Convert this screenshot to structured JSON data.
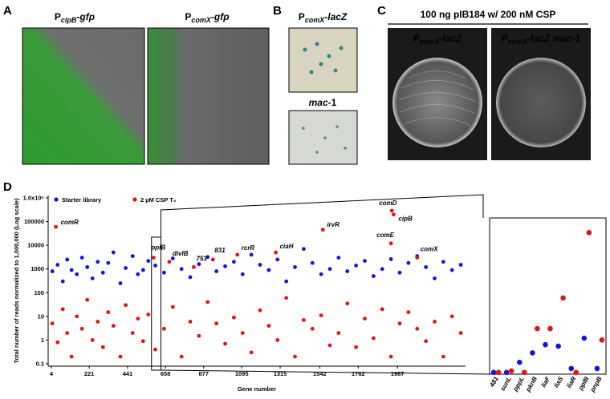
{
  "panels": {
    "A": {
      "label": "A",
      "images": [
        {
          "title": [
            "P",
            "cipB",
            "-gfp"
          ]
        },
        {
          "title": [
            "P",
            "comX",
            "-gfp"
          ]
        }
      ]
    },
    "B": {
      "label": "B",
      "images": [
        {
          "title": [
            "P",
            "comX",
            "-lacZ"
          ]
        },
        {
          "title": [
            "mac",
            "-1"
          ]
        }
      ]
    },
    "C": {
      "label": "C",
      "title": "100 ng pIB184 w/ 200 nM CSP",
      "images": [
        {
          "title": [
            "P",
            "comX",
            "-lacZ"
          ]
        },
        {
          "title": [
            "P",
            "comX",
            "-lacZ",
            " mac",
            "-1"
          ]
        }
      ]
    },
    "D": {
      "label": "D"
    }
  },
  "chart_data": [
    {
      "type": "scatter",
      "xlabel": "Gene number",
      "ylabel": "Total number of reads normalized to 1,000,000 (Log scale)",
      "log_y": true,
      "ylim": [
        0.1,
        1000000
      ],
      "yticks": [
        0.1,
        1,
        10,
        100,
        1000,
        10000,
        100000,
        {
          "value": 1000000,
          "label": "1.0x10⁶"
        }
      ],
      "xlim": [
        -14,
        2377
      ],
      "xticks": [
        4,
        221,
        441,
        658,
        877,
        1095,
        1315,
        1542,
        1762,
        1987
      ],
      "zoom_range": [
        578,
        632
      ],
      "series": [
        {
          "name": "Starter library",
          "color": "#1414e6",
          "x": [
            10,
            40,
            70,
            95,
            120,
            150,
            180,
            210,
            240,
            270,
            300,
            330,
            360,
            400,
            430,
            470,
            500,
            530,
            560,
            600,
            650,
            700,
            750,
            800,
            850,
            900,
            950,
            1000,
            1050,
            1100,
            1150,
            1200,
            1250,
            1300,
            1350,
            1400,
            1450,
            1500,
            1550,
            1600,
            1650,
            1700,
            1750,
            1800,
            1850,
            1900,
            1950,
            2000,
            2050,
            2100,
            2150,
            2200,
            2250,
            2300,
            2350
          ],
          "values": [
            800,
            1500,
            300,
            2500,
            900,
            600,
            3000,
            1200,
            400,
            2000,
            700,
            1800,
            5000,
            250,
            1100,
            3500,
            600,
            900,
            2200,
            1400,
            700,
            2800,
            1000,
            450,
            1600,
            3200,
            800,
            1300,
            2000,
            600,
            4000,
            1500,
            900,
            2500,
            300,
            1200,
            7000,
            1800,
            600,
            1000,
            3000,
            800,
            1400,
            2200,
            500,
            1000,
            2600,
            700,
            1800,
            3500,
            1200,
            400,
            2000,
            900,
            1500
          ]
        },
        {
          "name": "2 µM CSP T₅",
          "color": "#e61414",
          "x": [
            10,
            40,
            70,
            95,
            120,
            150,
            180,
            210,
            240,
            270,
            300,
            330,
            360,
            400,
            430,
            470,
            500,
            530,
            560,
            600,
            650,
            700,
            750,
            800,
            850,
            900,
            950,
            1000,
            1050,
            1100,
            1150,
            1200,
            1250,
            1300,
            1350,
            1400,
            1450,
            1500,
            1550,
            1600,
            1650,
            1700,
            1750,
            1800,
            1850,
            1900,
            1950,
            2000,
            2050,
            2100,
            2150,
            2200,
            2250,
            2300,
            2350
          ],
          "values": [
            5,
            0.8,
            20,
            2,
            0.2,
            10,
            3,
            50,
            1,
            6,
            0.5,
            15,
            4,
            0.2,
            30,
            2,
            8,
            0.9,
            12,
            0.4,
            3,
            25,
            0.2,
            6,
            1.5,
            40,
            5,
            0.7,
            9,
            2,
            0.3,
            18,
            4,
            1,
            60,
            0.2,
            7,
            3,
            11,
            0.6,
            2,
            35,
            0.5,
            8,
            1.2,
            20,
            0.2,
            5,
            15,
            3,
            0.9,
            6,
            0.2,
            10,
            2
          ]
        }
      ],
      "annotations": [
        {
          "text": "comR",
          "x": 30,
          "y": 60000
        },
        {
          "text": "pplB",
          "x": 590,
          "y": 3000
        },
        {
          "text": "divIB",
          "x": 680,
          "y": 2000
        },
        {
          "text": "753",
          "x": 820,
          "y": 1200
        },
        {
          "text": "831",
          "x": 930,
          "y": 2500
        },
        {
          "text": "rcrR",
          "x": 1070,
          "y": 4000
        },
        {
          "text": "ciaH",
          "x": 1290,
          "y": 5000
        },
        {
          "text": "irvR",
          "x": 1560,
          "y": 45000
        },
        {
          "text": "comD",
          "x": 1955,
          "y": 290000
        },
        {
          "text": "cipB",
          "x": 1965,
          "y": 200000
        },
        {
          "text": "comE",
          "x": 1950,
          "y": 12000
        },
        {
          "text": "comX",
          "x": 2100,
          "y": 3000
        }
      ]
    },
    {
      "type": "scatter",
      "log_y": true,
      "ylim": [
        0.1,
        1000000
      ],
      "categories": [
        "481",
        "sunL",
        "pppL",
        "pknB",
        "liaF",
        "liaS",
        "liaR",
        "pplB",
        "pnpB"
      ],
      "series": [
        {
          "color": "#1414e6",
          "values": [
            0.12,
            0.12,
            0.34,
            0.9,
            2.1,
            1.8,
            0.18,
            4.1,
            0.18
          ]
        },
        {
          "color": "#e61414",
          "values": [
            0.12,
            0.14,
            0.12,
            11,
            11,
            260,
            0.12,
            220000,
            3.4
          ]
        }
      ]
    }
  ]
}
